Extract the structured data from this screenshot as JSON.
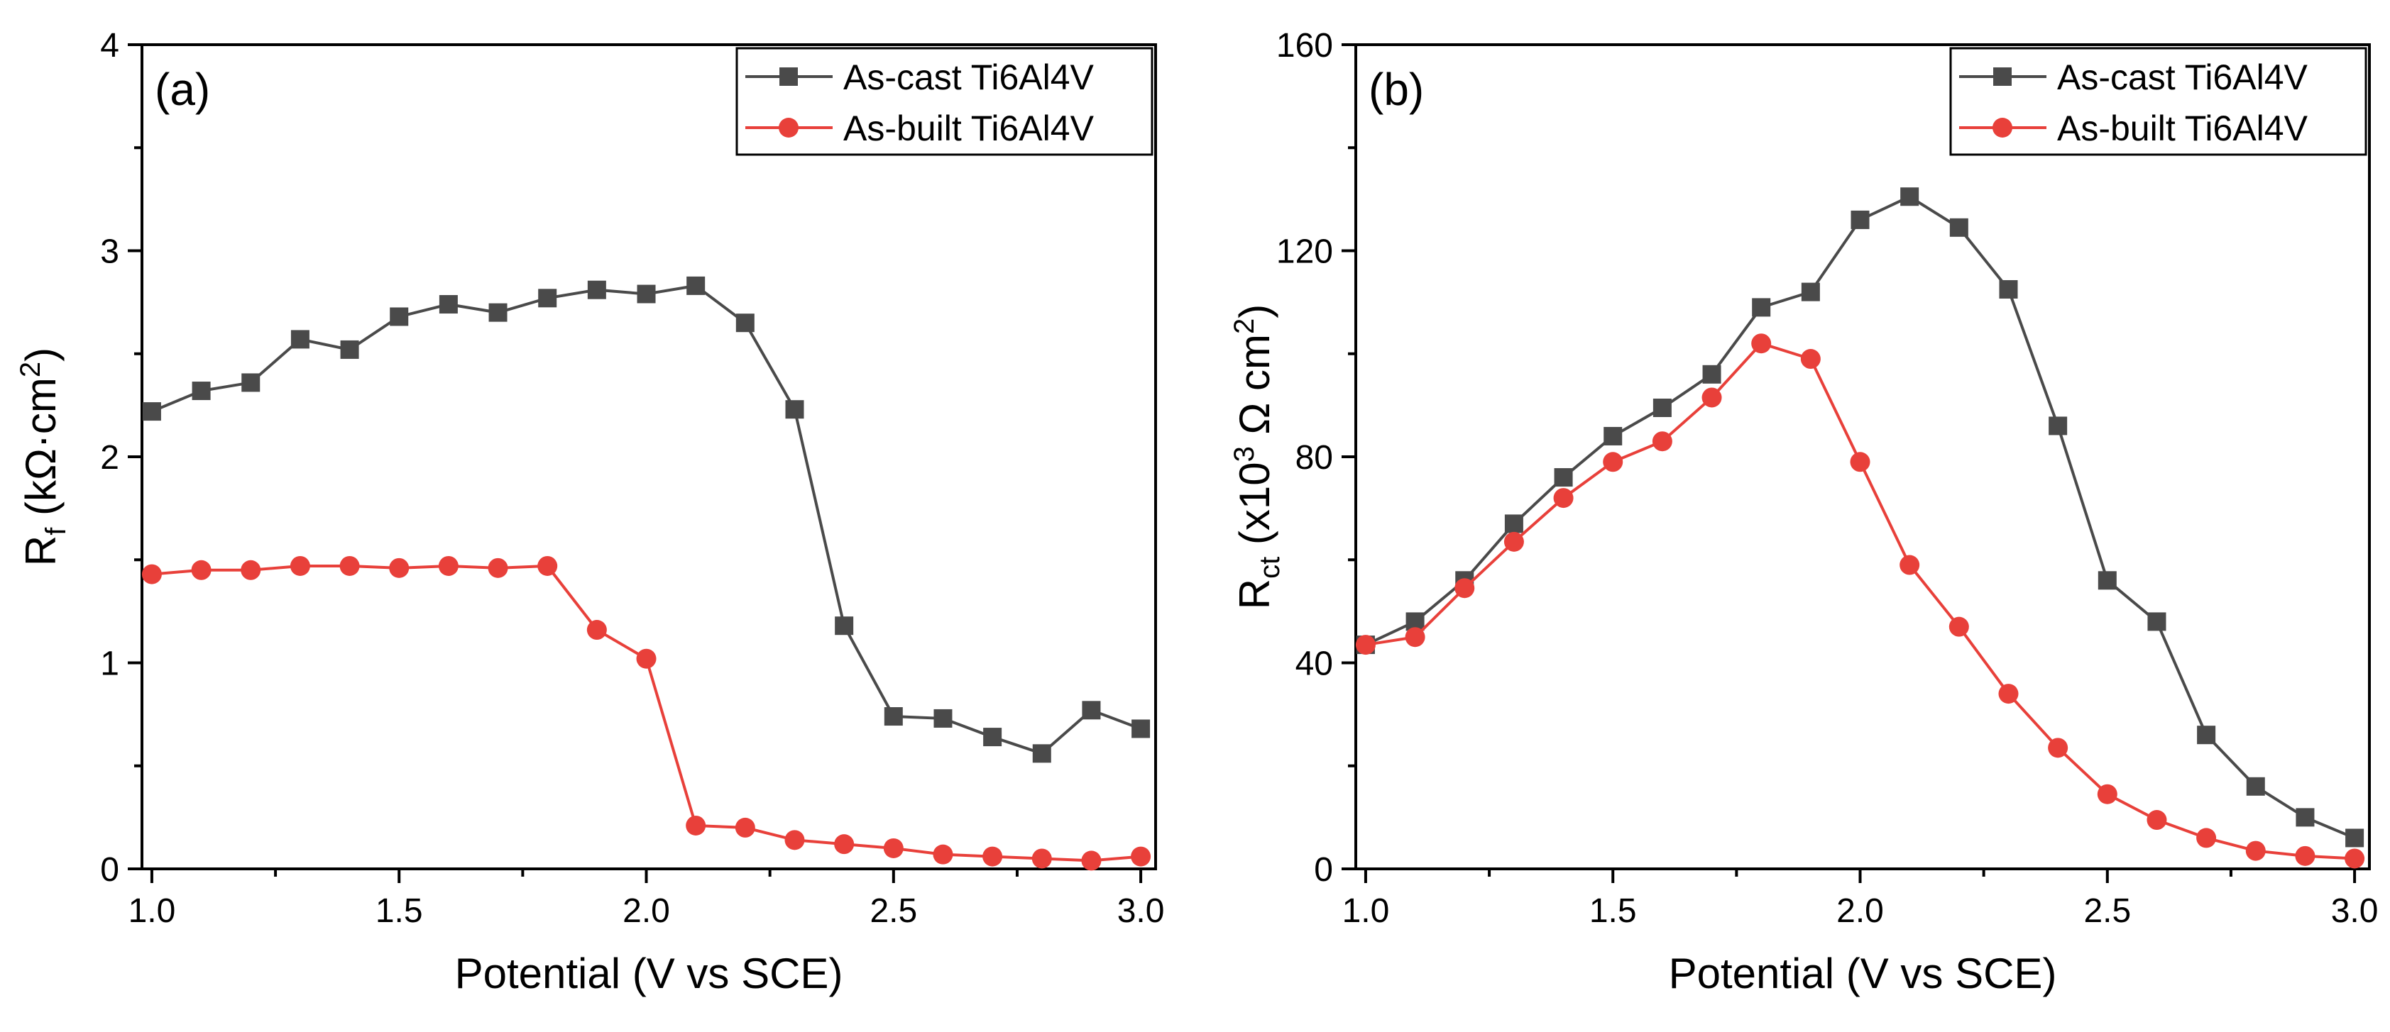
{
  "colors": {
    "as_cast": "#4a4a4a",
    "as_built": "#e8403a",
    "axis": "#000000"
  },
  "chart_data": [
    {
      "type": "line",
      "panel_label": "(a)",
      "xlabel": "Potential (V vs SCE)",
      "ylabel_main": "R",
      "ylabel_sub": "f",
      "ylabel_rest": " (kΩ·cm",
      "ylabel_sup": "2",
      "ylabel_close": ")",
      "xlim": [
        0.98,
        3.03
      ],
      "ylim": [
        0,
        4
      ],
      "xticks": [
        1.0,
        1.5,
        2.0,
        2.5,
        3.0
      ],
      "xtick_labels": [
        "1.0",
        "1.5",
        "2.0",
        "2.5",
        "3.0"
      ],
      "yticks": [
        0,
        1,
        2,
        3,
        4
      ],
      "ytick_labels": [
        "0",
        "1",
        "2",
        "3",
        "4"
      ],
      "legend_position": "top-right",
      "x": [
        1.0,
        1.1,
        1.2,
        1.3,
        1.4,
        1.5,
        1.6,
        1.7,
        1.8,
        1.9,
        2.0,
        2.1,
        2.2,
        2.3,
        2.4,
        2.5,
        2.6,
        2.7,
        2.8,
        2.9,
        3.0
      ],
      "series": [
        {
          "name": "As-cast Ti6Al4V",
          "marker": "square",
          "color": "#4a4a4a",
          "values": [
            2.22,
            2.32,
            2.36,
            2.57,
            2.52,
            2.68,
            2.74,
            2.7,
            2.77,
            2.81,
            2.79,
            2.83,
            2.65,
            2.23,
            1.18,
            0.74,
            0.73,
            0.64,
            0.56,
            0.77,
            0.68
          ]
        },
        {
          "name": "As-built Ti6Al4V",
          "marker": "circle",
          "color": "#e8403a",
          "values": [
            1.43,
            1.45,
            1.45,
            1.47,
            1.47,
            1.46,
            1.47,
            1.46,
            1.47,
            1.16,
            1.02,
            0.21,
            0.2,
            0.14,
            0.12,
            0.1,
            0.07,
            0.06,
            0.05,
            0.04,
            0.06
          ]
        }
      ]
    },
    {
      "type": "line",
      "panel_label": "(b)",
      "xlabel": "Potential (V vs SCE)",
      "ylabel_main": "R",
      "ylabel_sub": "ct",
      "ylabel_rest": " (x10",
      "ylabel_sup": "3",
      "ylabel_rest2": " Ω cm",
      "ylabel_sup2": "2",
      "ylabel_close": ")",
      "xlim": [
        0.98,
        3.03
      ],
      "ylim": [
        0,
        160
      ],
      "xticks": [
        1.0,
        1.5,
        2.0,
        2.5,
        3.0
      ],
      "xtick_labels": [
        "1.0",
        "1.5",
        "2.0",
        "2.5",
        "3.0"
      ],
      "yticks": [
        0,
        40,
        80,
        120,
        160
      ],
      "ytick_labels": [
        "0",
        "40",
        "80",
        "120",
        "160"
      ],
      "legend_position": "top-right",
      "x": [
        1.0,
        1.1,
        1.2,
        1.3,
        1.4,
        1.5,
        1.6,
        1.7,
        1.8,
        1.9,
        2.0,
        2.1,
        2.2,
        2.3,
        2.4,
        2.5,
        2.6,
        2.7,
        2.8,
        2.9,
        3.0
      ],
      "series": [
        {
          "name": "As-cast Ti6Al4V",
          "marker": "square",
          "color": "#4a4a4a",
          "values": [
            43.5,
            48.0,
            56.0,
            67.0,
            76.0,
            84.0,
            89.5,
            96.0,
            109.0,
            112.0,
            126.0,
            130.5,
            124.5,
            112.5,
            86.0,
            56.0,
            48.0,
            26.0,
            16.0,
            10.0,
            6.0
          ]
        },
        {
          "name": "As-built Ti6Al4V",
          "marker": "circle",
          "color": "#e8403a",
          "values": [
            43.5,
            45.0,
            54.5,
            63.5,
            72.0,
            79.0,
            83.0,
            91.5,
            102.0,
            99.0,
            79.0,
            59.0,
            47.0,
            34.0,
            23.5,
            14.5,
            9.5,
            6.0,
            3.5,
            2.5,
            2.0
          ]
        }
      ]
    }
  ]
}
